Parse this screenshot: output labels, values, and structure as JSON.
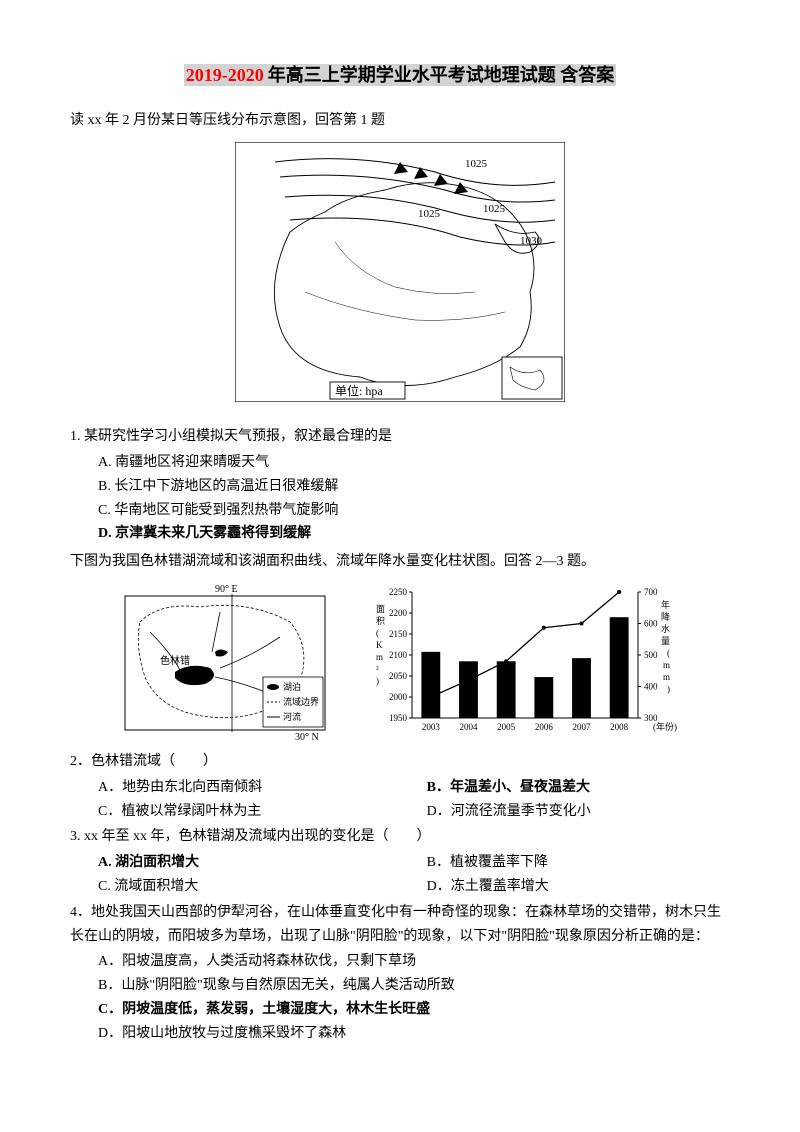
{
  "title": {
    "part1": "2019-2020",
    "part2": "年高三上学期学业水平考试地理试题 含答案"
  },
  "intro1": "读 xx 年 2 月份某日等压线分布示意图，回答第 1 题",
  "map1": {
    "unit_label": "单位: hpa",
    "isobars": [
      "1025",
      "1025",
      "1025",
      "1030"
    ],
    "stroke": "#000000",
    "bg": "#ffffff"
  },
  "q1": {
    "stem": "1. 某研究性学习小组模拟天气预报，叙述最合理的是",
    "A": "A. 南疆地区将迎来晴暖天气",
    "B": "B. 长江中下游地区的高温近日很难缓解",
    "C": "C. 华南地区可能受到强烈热带气旋影响",
    "D": "D. 京津冀未来几天雾霾将得到缓解"
  },
  "intro2": "下图为我国色林错湖流域和该湖面积曲线、流域年降水量变化柱状图。回答 2—3 题。",
  "map2": {
    "top_label": "90° E",
    "lake_label": "色林错",
    "legend": [
      "湖泊",
      "流域边界",
      "河流"
    ],
    "bottom_label": "30° N",
    "stroke": "#000000"
  },
  "chart": {
    "type": "combo-bar-line",
    "y1_label": "面积(Km²)",
    "y2_label": "年降水量(mm)",
    "y1_ticks": [
      1950,
      2000,
      2050,
      2100,
      2150,
      2200,
      2250
    ],
    "y2_ticks": [
      300,
      400,
      500,
      600,
      700
    ],
    "x_labels": [
      "2003",
      "2004",
      "2005",
      "2006",
      "2007",
      "2008"
    ],
    "x_unit": "(年份)",
    "line_values": [
      2000,
      2040,
      2085,
      2165,
      2175,
      2250
    ],
    "bar_values": [
      510,
      480,
      480,
      430,
      490,
      620
    ],
    "bar_color": "#000000",
    "line_color": "#000000",
    "grid_color": "#000000",
    "bg": "#ffffff",
    "font_size": 9
  },
  "q2": {
    "stem": "2．色林错流域（　　）",
    "A": "A．地势由东北向西南倾斜",
    "B": "B．年温差小、昼夜温差大",
    "C": "C．植被以常绿阔叶林为主",
    "D": "D．河流径流量季节变化小"
  },
  "q3": {
    "stem": "3. xx 年至 xx 年，色林错湖及流域内出现的变化是（　　）",
    "A": "A. 湖泊面积增大",
    "B": "B．植被覆盖率下降",
    "C": "C. 流域面积增大",
    "D": "D．冻土覆盖率增大"
  },
  "q4": {
    "stem": "4．地处我国天山西部的伊犁河谷，在山体垂直变化中有一种奇怪的现象：在森林草场的交错带，树木只生长在山的阴坡，而阳坡多为草场，出现了山脉\"阴阳脸\"的现象，以下对\"阴阳脸\"现象原因分析正确的是：",
    "A": "A．阳坡温度高，人类活动将森林砍伐，只剩下草场",
    "B": "B．山脉\"阴阳脸\"现象与自然原因无关，纯属人类活动所致",
    "C": "C．阴坡温度低，蒸发弱，土壤湿度大，林木生长旺盛",
    "D": "D．阳坡山地放牧与过度樵采毁坏了森林"
  }
}
